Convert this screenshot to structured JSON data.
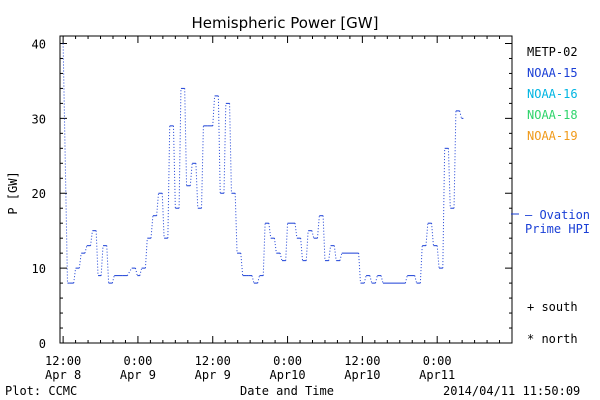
{
  "chart_data": {
    "type": "line",
    "title": "Hemispheric Power [GW]",
    "ylabel": "P [GW]",
    "xlabel": "Date and Time",
    "ylim": [
      0,
      41
    ],
    "yticks": [
      0,
      10,
      20,
      30,
      40
    ],
    "xticks": [
      {
        "t": 0,
        "line1": "12:00",
        "line2": "Apr 8"
      },
      {
        "t": 12,
        "line1": "0:00",
        "line2": "Apr 9"
      },
      {
        "t": 24,
        "line1": "12:00",
        "line2": "Apr 9"
      },
      {
        "t": 36,
        "line1": "0:00",
        "line2": "Apr10"
      },
      {
        "t": 48,
        "line1": "12:00",
        "line2": "Apr10"
      },
      {
        "t": 60,
        "line1": "0:00",
        "line2": "Apr11"
      }
    ],
    "xlim": [
      -0.5,
      72
    ],
    "series": [
      {
        "name": "NOAA-15",
        "color": "#1a3fd6",
        "style": "dotted-step",
        "points": [
          [
            0,
            40
          ],
          [
            0.7,
            8
          ],
          [
            1,
            8
          ],
          [
            1.7,
            8
          ],
          [
            2,
            10
          ],
          [
            2.6,
            10
          ],
          [
            2.9,
            12
          ],
          [
            3.5,
            12
          ],
          [
            3.8,
            13
          ],
          [
            4.4,
            13
          ],
          [
            4.7,
            15
          ],
          [
            5.3,
            15
          ],
          [
            5.6,
            9
          ],
          [
            6.1,
            9
          ],
          [
            6.4,
            13
          ],
          [
            7,
            13
          ],
          [
            7.3,
            8
          ],
          [
            7.9,
            8
          ],
          [
            8.2,
            9
          ],
          [
            9.5,
            9
          ],
          [
            10.3,
            9
          ],
          [
            11,
            10
          ],
          [
            11.6,
            10
          ],
          [
            11.9,
            9
          ],
          [
            12.3,
            9
          ],
          [
            12.6,
            10
          ],
          [
            13.2,
            10
          ],
          [
            13.5,
            14
          ],
          [
            14.1,
            14
          ],
          [
            14.4,
            17
          ],
          [
            15,
            17
          ],
          [
            15.3,
            20
          ],
          [
            15.9,
            20
          ],
          [
            16.2,
            14
          ],
          [
            16.8,
            14
          ],
          [
            17.1,
            29
          ],
          [
            17.7,
            29
          ],
          [
            18,
            18
          ],
          [
            18.6,
            18
          ],
          [
            18.9,
            34
          ],
          [
            19.5,
            34
          ],
          [
            19.8,
            21
          ],
          [
            20.4,
            21
          ],
          [
            20.7,
            24
          ],
          [
            21.3,
            24
          ],
          [
            21.6,
            18
          ],
          [
            22.2,
            18
          ],
          [
            22.5,
            29
          ],
          [
            23.1,
            29
          ],
          [
            23.4,
            29
          ],
          [
            24,
            29
          ],
          [
            24.3,
            33
          ],
          [
            24.9,
            33
          ],
          [
            25.2,
            20
          ],
          [
            25.8,
            20
          ],
          [
            26.1,
            32
          ],
          [
            26.7,
            32
          ],
          [
            27,
            20
          ],
          [
            27.6,
            20
          ],
          [
            27.9,
            12
          ],
          [
            28.5,
            12
          ],
          [
            28.8,
            9
          ],
          [
            29.4,
            9
          ],
          [
            29.7,
            9
          ],
          [
            30.3,
            9
          ],
          [
            30.6,
            8
          ],
          [
            31.2,
            8
          ],
          [
            31.5,
            9
          ],
          [
            32.1,
            9
          ],
          [
            32.4,
            16
          ],
          [
            33,
            16
          ],
          [
            33.3,
            14
          ],
          [
            33.9,
            14
          ],
          [
            34.2,
            12
          ],
          [
            34.8,
            12
          ],
          [
            35.1,
            11
          ],
          [
            35.7,
            11
          ],
          [
            36,
            16
          ],
          [
            37.2,
            16
          ],
          [
            37.5,
            14
          ],
          [
            38.1,
            14
          ],
          [
            38.4,
            11
          ],
          [
            39,
            11
          ],
          [
            39.3,
            15
          ],
          [
            39.9,
            15
          ],
          [
            40.2,
            14
          ],
          [
            40.8,
            14
          ],
          [
            41.1,
            17
          ],
          [
            41.7,
            17
          ],
          [
            42,
            11
          ],
          [
            42.6,
            11
          ],
          [
            42.9,
            13
          ],
          [
            43.5,
            13
          ],
          [
            43.8,
            11
          ],
          [
            44.4,
            11
          ],
          [
            44.7,
            12
          ],
          [
            47.4,
            12
          ],
          [
            47.7,
            8
          ],
          [
            48.3,
            8
          ],
          [
            48.6,
            9
          ],
          [
            49.2,
            9
          ],
          [
            49.5,
            8
          ],
          [
            50.1,
            8
          ],
          [
            50.4,
            9
          ],
          [
            51,
            9
          ],
          [
            51.3,
            8
          ],
          [
            54.9,
            8
          ],
          [
            55.2,
            9
          ],
          [
            56.4,
            9
          ],
          [
            56.7,
            8
          ],
          [
            57.3,
            8
          ],
          [
            57.6,
            13
          ],
          [
            58.2,
            13
          ],
          [
            58.5,
            16
          ],
          [
            59.1,
            16
          ],
          [
            59.4,
            13
          ],
          [
            60,
            13
          ],
          [
            60.3,
            10
          ],
          [
            60.9,
            10
          ],
          [
            61.2,
            26
          ],
          [
            61.8,
            26
          ],
          [
            62.1,
            18
          ],
          [
            62.7,
            18
          ],
          [
            63,
            31
          ],
          [
            63.6,
            31
          ],
          [
            63.9,
            30
          ],
          [
            64.2,
            30
          ]
        ]
      }
    ],
    "legend": [
      {
        "label": "METP-02",
        "color": "#000000"
      },
      {
        "label": "NOAA-15",
        "color": "#1a3fd6"
      },
      {
        "label": "NOAA-16",
        "color": "#00b5e2"
      },
      {
        "label": "NOAA-18",
        "color": "#2ed46b"
      },
      {
        "label": "NOAA-19",
        "color": "#f09a1a"
      }
    ],
    "legend_position": "right",
    "ovation": {
      "label_line1": "— Ovation",
      "label_line2": "Prime HPI",
      "value": 17,
      "color": "#1a3fd6"
    },
    "markers": [
      {
        "symbol": "+",
        "label": "south"
      },
      {
        "symbol": "*",
        "label": "north"
      }
    ],
    "footer": {
      "left": "Plot: CCMC",
      "right": "2014/04/11 11:50:09"
    }
  }
}
